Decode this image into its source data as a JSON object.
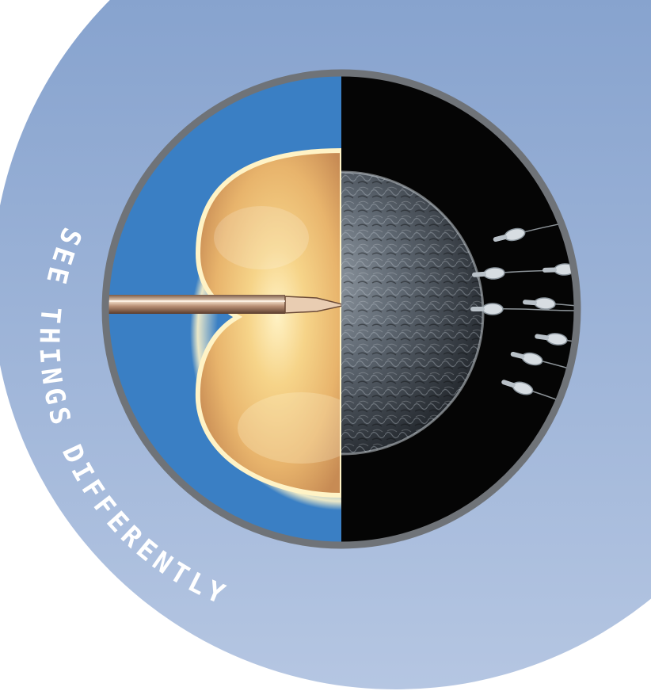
{
  "tagline": "SEE THINGS DIFFERENTLY",
  "colors": {
    "background": "#ffffff",
    "disc_top": "#7f9dcb",
    "disc_bottom": "#b5c6e2",
    "ring": "#6f7378",
    "left_panel_blue": "#3a7fc4",
    "right_panel_black": "#050505",
    "egg_light": "#f6d489",
    "egg_mid": "#e8b46c",
    "egg_dark": "#b5825a",
    "sem_cell": "#5f6872",
    "sperm": "#d7dde2",
    "tagline_text": "#ffffff"
  },
  "icons": {
    "micropipette": "micropipette-icon",
    "egg": "egg-cell-icon",
    "sperm": "sperm-icon"
  }
}
